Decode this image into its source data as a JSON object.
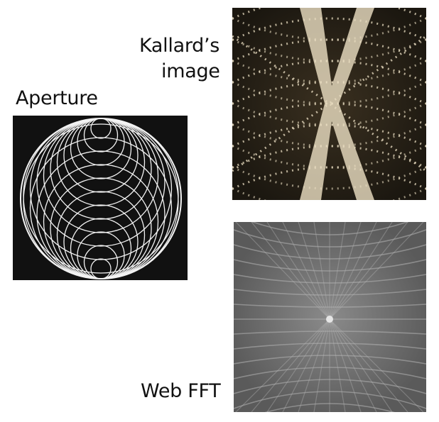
{
  "labels": {
    "aperture": "Aperture",
    "kallard_line1": "Kallard’s",
    "kallard_line2": "image",
    "web_fft": "Web FFT"
  },
  "panels": {
    "aperture": {
      "description_icon": "concentric-circles-pattern-icon",
      "background": "#111111",
      "line_color": "#f2f2f2"
    },
    "kallard": {
      "description_icon": "diffraction-photo-icon",
      "background": "#2a2418",
      "line_color": "#e8dcc0"
    },
    "web_fft": {
      "description_icon": "fft-spectrum-icon",
      "background": "#6a6a6a",
      "line_color": "#b4b4b4"
    }
  }
}
